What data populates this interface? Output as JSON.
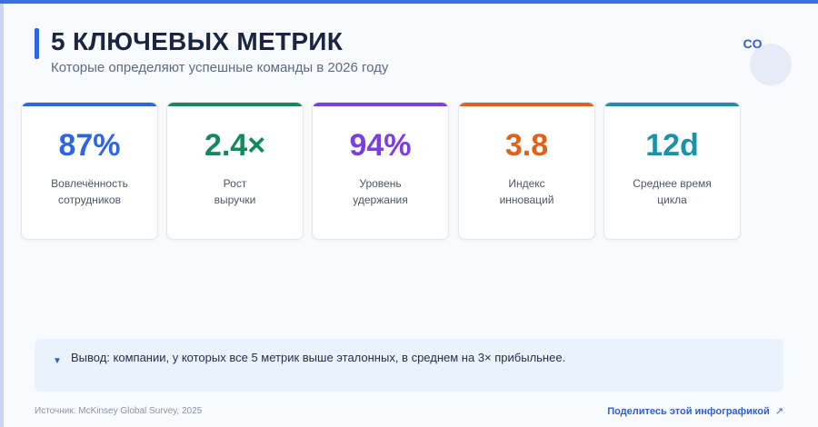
{
  "header": {
    "title": "5 КЛЮЧЕВЫХ МЕТРИК",
    "subtitle": "Которые определяют успешные команды в 2026 году",
    "logo": "CO"
  },
  "metrics": [
    {
      "value": "87%",
      "label_line1": "Вовлечённость",
      "label_line2": "сотрудников",
      "color": "#2f66e0"
    },
    {
      "value": "2.4×",
      "label_line1": "Рост",
      "label_line2": "выручки",
      "color": "#138a5e"
    },
    {
      "value": "94%",
      "label_line1": "Уровень",
      "label_line2": "удержания",
      "color": "#7b3fe0"
    },
    {
      "value": "3.8",
      "label_line1": "Индекс",
      "label_line2": "инноваций",
      "color": "#e0611a"
    },
    {
      "value": "12d",
      "label_line1": "Среднее время",
      "label_line2": "цикла",
      "color": "#1a93aa"
    }
  ],
  "conclusion": {
    "icon": "triangle-down-icon",
    "text": "Вывод: компании, у которых все 5 метрик выше эталонных, в среднем на 3× прибыльнее."
  },
  "footer": {
    "source": "Источник: McKinsey Global Survey, 2025",
    "share_label": "Поделитесь этой инфографикой",
    "share_arrow": "↗"
  }
}
